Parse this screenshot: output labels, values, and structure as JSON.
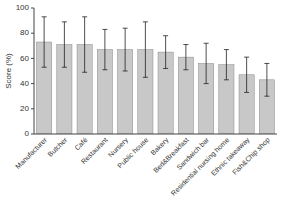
{
  "chart_data": {
    "type": "bar",
    "categories": [
      "Manufacturer",
      "Butcher",
      "Café",
      "Restaurant",
      "Nursery",
      "Public house",
      "Bakery",
      "Bed&Breakfast",
      "Sandwich bar",
      "Residential nursing home",
      "Ethnic takeaway",
      "Fish&Chip shop"
    ],
    "values": [
      73,
      71,
      71,
      67,
      67,
      67,
      65,
      61,
      56,
      55,
      47,
      43
    ],
    "errors": [
      20,
      18,
      22,
      16,
      17,
      22,
      13,
      10,
      16,
      12,
      14,
      13
    ],
    "color": "#c8c8c8",
    "ylabel": "Score (%)",
    "ylim": [
      0,
      100
    ],
    "yticks": [
      0,
      20,
      40,
      60,
      80,
      100
    ],
    "grid": false
  }
}
